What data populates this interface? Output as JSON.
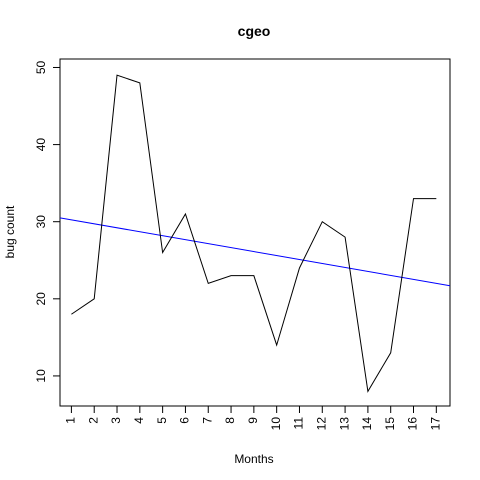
{
  "chart_data": {
    "type": "line",
    "title": "cgeo",
    "xlabel": "Months",
    "ylabel": "bug count",
    "x": [
      1,
      2,
      3,
      4,
      5,
      6,
      7,
      8,
      9,
      10,
      11,
      12,
      13,
      14,
      15,
      16,
      17
    ],
    "x_tick_labels": [
      "1",
      "2",
      "3",
      "4",
      "5",
      "6",
      "7",
      "8",
      "9",
      "10",
      "11",
      "12",
      "13",
      "14",
      "15",
      "16",
      "17"
    ],
    "y_tick_labels": [
      "10",
      "20",
      "30",
      "40",
      "50"
    ],
    "xlim": [
      0.5,
      17.6
    ],
    "ylim": [
      6.1,
      51.1
    ],
    "grid": false,
    "series": [
      {
        "values": [
          18,
          20,
          49,
          48,
          26,
          31,
          22,
          23,
          23,
          14,
          24,
          30,
          28,
          8,
          13,
          33,
          33
        ],
        "color": "#000000"
      }
    ],
    "trend_line": {
      "color": "#0000ff",
      "y_at_xlim": [
        30.5,
        21.7
      ]
    }
  }
}
